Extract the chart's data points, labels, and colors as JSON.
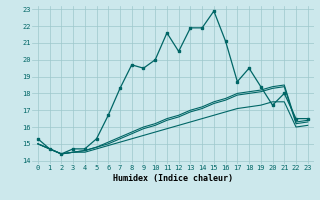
{
  "xlabel": "Humidex (Indice chaleur)",
  "bg_color": "#cce8ec",
  "grid_color": "#9dc8cc",
  "line_color": "#006666",
  "xlim": [
    -0.5,
    23.5
  ],
  "ylim": [
    13.8,
    23.2
  ],
  "xticks": [
    0,
    1,
    2,
    3,
    4,
    5,
    6,
    7,
    8,
    9,
    10,
    11,
    12,
    13,
    14,
    15,
    16,
    17,
    18,
    19,
    20,
    21,
    22,
    23
  ],
  "yticks": [
    14,
    15,
    16,
    17,
    18,
    19,
    20,
    21,
    22,
    23
  ],
  "line1_x": [
    0,
    1,
    2,
    3,
    4,
    5,
    6,
    7,
    8,
    9,
    10,
    11,
    12,
    13,
    14,
    15,
    16,
    17,
    18,
    19,
    20,
    21,
    22,
    23
  ],
  "line1_y": [
    15.3,
    14.7,
    14.4,
    14.7,
    14.7,
    15.3,
    16.7,
    18.3,
    19.7,
    19.5,
    20.0,
    21.6,
    20.5,
    21.9,
    21.9,
    22.9,
    21.1,
    18.7,
    19.5,
    18.4,
    17.3,
    18.0,
    16.5,
    16.5
  ],
  "line2_x": [
    0,
    1,
    2,
    3,
    4,
    5,
    6,
    7,
    8,
    9,
    10,
    11,
    12,
    13,
    14,
    15,
    16,
    17,
    18,
    19,
    20,
    21,
    22,
    23
  ],
  "line2_y": [
    15.0,
    14.7,
    14.4,
    14.5,
    14.6,
    14.8,
    15.1,
    15.4,
    15.7,
    16.0,
    16.2,
    16.5,
    16.7,
    17.0,
    17.2,
    17.5,
    17.7,
    18.0,
    18.1,
    18.2,
    18.4,
    18.5,
    16.3,
    16.4
  ],
  "line3_x": [
    0,
    1,
    2,
    3,
    4,
    5,
    6,
    7,
    8,
    9,
    10,
    11,
    12,
    13,
    14,
    15,
    16,
    17,
    18,
    19,
    20,
    21,
    22,
    23
  ],
  "line3_y": [
    15.0,
    14.7,
    14.4,
    14.5,
    14.6,
    14.8,
    15.0,
    15.3,
    15.6,
    15.9,
    16.1,
    16.4,
    16.6,
    16.9,
    17.1,
    17.4,
    17.6,
    17.9,
    18.0,
    18.1,
    18.3,
    18.4,
    16.2,
    16.3
  ],
  "line4_x": [
    0,
    1,
    2,
    3,
    4,
    5,
    6,
    7,
    8,
    9,
    10,
    11,
    12,
    13,
    14,
    15,
    16,
    17,
    18,
    19,
    20,
    21,
    22,
    23
  ],
  "line4_y": [
    15.0,
    14.7,
    14.4,
    14.5,
    14.5,
    14.7,
    14.9,
    15.1,
    15.3,
    15.5,
    15.7,
    15.9,
    16.1,
    16.3,
    16.5,
    16.7,
    16.9,
    17.1,
    17.2,
    17.3,
    17.5,
    17.5,
    16.0,
    16.1
  ],
  "tick_fontsize": 5.0,
  "xlabel_fontsize": 6.0
}
